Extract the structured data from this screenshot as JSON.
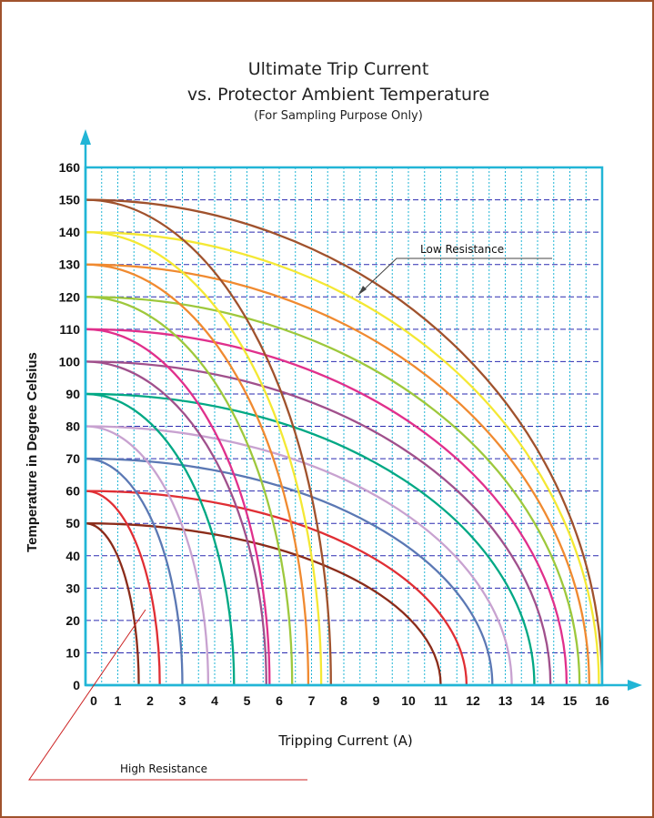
{
  "chart_data": {
    "type": "line",
    "title": "Ultimate Trip Current",
    "subtitle": "vs. Protector Ambient Temperature",
    "note": "(For Sampling Purpose Only)",
    "xlabel": "Tripping Current (A)",
    "ylabel": "Temperature in Degree Celsius",
    "xlim": [
      0,
      16
    ],
    "ylim": [
      0,
      160
    ],
    "x_ticks": [
      "0",
      "1",
      "2",
      "3",
      "4",
      "5",
      "6",
      "7",
      "8",
      "9",
      "10",
      "11",
      "12",
      "13",
      "14",
      "15",
      "16"
    ],
    "y_ticks": [
      "0",
      "10",
      "20",
      "30",
      "40",
      "50",
      "60",
      "70",
      "80",
      "90",
      "100",
      "110",
      "120",
      "130",
      "140",
      "150",
      "160"
    ],
    "grid": true,
    "annotations": [
      {
        "text": "Low Resistance"
      },
      {
        "text": "High Resistance"
      }
    ],
    "series": [
      {
        "color": "#8B2C1A",
        "t0": 50,
        "i_max": 1.65
      },
      {
        "color": "#8B2C1A",
        "t0": 50,
        "i_max": 11.0
      },
      {
        "color": "#E02E34",
        "t0": 60,
        "i_max": 2.3
      },
      {
        "color": "#E02E34",
        "t0": 60,
        "i_max": 11.8
      },
      {
        "color": "#5B78B4",
        "t0": 70,
        "i_max": 3.0
      },
      {
        "color": "#5B78B4",
        "t0": 70,
        "i_max": 12.6
      },
      {
        "color": "#C8A2D0",
        "t0": 80,
        "i_max": 3.8
      },
      {
        "color": "#C8A2D0",
        "t0": 80,
        "i_max": 13.2
      },
      {
        "color": "#00A884",
        "t0": 90,
        "i_max": 4.6
      },
      {
        "color": "#00A884",
        "t0": 90,
        "i_max": 13.9
      },
      {
        "color": "#A0508C",
        "t0": 100,
        "i_max": 5.6
      },
      {
        "color": "#A0508C",
        "t0": 100,
        "i_max": 14.4
      },
      {
        "color": "#E0308C",
        "t0": 110,
        "i_max": 5.7
      },
      {
        "color": "#E0308C",
        "t0": 110,
        "i_max": 14.9
      },
      {
        "color": "#9EC83C",
        "t0": 120,
        "i_max": 6.4
      },
      {
        "color": "#9EC83C",
        "t0": 120,
        "i_max": 15.3
      },
      {
        "color": "#F08A30",
        "t0": 130,
        "i_max": 6.9
      },
      {
        "color": "#F08A30",
        "t0": 130,
        "i_max": 15.6
      },
      {
        "color": "#F4E834",
        "t0": 140,
        "i_max": 7.3
      },
      {
        "color": "#F4E834",
        "t0": 140,
        "i_max": 15.9
      },
      {
        "color": "#A0522D",
        "t0": 150,
        "i_max": 7.6
      },
      {
        "color": "#A0522D",
        "t0": 150,
        "i_max": 16.0
      }
    ]
  },
  "colors": {
    "frame": "#a0522d",
    "axis": "#21b5d6",
    "grid_h": "#2a2ab0",
    "grid_v": "#21b5d6",
    "annotation_line": "#cc2222"
  }
}
